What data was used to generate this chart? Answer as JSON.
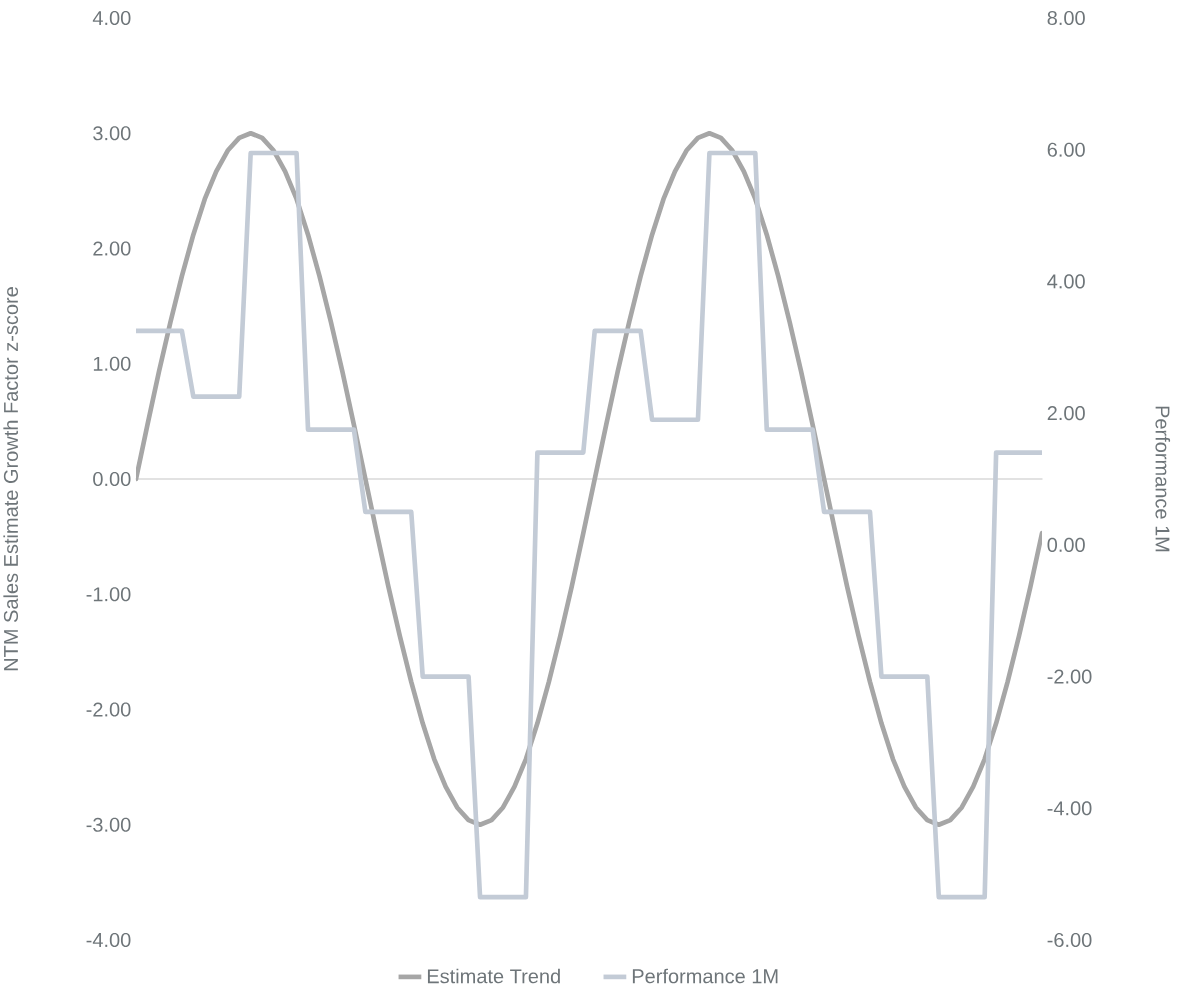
{
  "chart_data": {
    "type": "line",
    "ylabel": "NTM Sales Estimate Growth Factor z-score",
    "y2label": "Performance 1M",
    "categories": [
      null,
      null,
      null,
      null,
      null,
      null,
      null,
      null,
      null,
      null,
      null,
      null,
      null,
      null,
      null,
      null,
      null,
      null,
      null,
      null,
      null,
      null,
      null,
      null,
      null,
      null,
      null,
      null,
      null,
      null,
      null,
      null,
      null,
      null,
      null,
      null,
      null,
      null,
      null,
      null,
      null,
      null,
      null,
      null,
      null,
      null,
      null,
      null,
      null,
      null,
      null,
      null,
      null,
      null,
      null,
      null,
      null,
      null,
      null,
      null,
      null,
      null,
      null,
      null,
      null,
      null,
      null,
      null,
      null,
      null,
      null,
      null,
      null,
      null,
      null,
      null,
      null,
      null,
      null,
      null
    ],
    "series": [
      {
        "name": "Estimate Trend",
        "color": "#a6a6a6",
        "values": [
          0,
          0.47,
          0.93,
          1.36,
          1.76,
          2.12,
          2.43,
          2.67,
          2.85,
          2.96,
          3.0,
          2.96,
          2.85,
          2.67,
          2.43,
          2.12,
          1.76,
          1.36,
          0.93,
          0.47,
          0,
          -0.47,
          -0.93,
          -1.36,
          -1.76,
          -2.12,
          -2.43,
          -2.67,
          -2.85,
          -2.96,
          -3.0,
          -2.96,
          -2.85,
          -2.67,
          -2.43,
          -2.12,
          -1.76,
          -1.36,
          -0.93,
          -0.47,
          0,
          0.47,
          0.93,
          1.36,
          1.76,
          2.12,
          2.43,
          2.67,
          2.85,
          2.96,
          3.0,
          2.96,
          2.85,
          2.67,
          2.43,
          2.12,
          1.76,
          1.36,
          0.93,
          0.47,
          0,
          -0.47,
          -0.93,
          -1.36,
          -1.76,
          -2.12,
          -2.43,
          -2.67,
          -2.85,
          -2.96,
          -3.0,
          -2.96,
          -2.85,
          -2.67,
          -2.43,
          -2.12,
          -1.76,
          -1.36,
          -0.93,
          -0.47
        ]
      },
      {
        "name": "Performance 1M",
        "color": "#c3cbd6",
        "axis": "y2",
        "values": [
          3.25,
          3.25,
          3.25,
          3.25,
          3.25,
          2.25,
          2.25,
          2.25,
          2.25,
          2.25,
          5.95,
          5.95,
          5.95,
          5.95,
          5.95,
          1.75,
          1.75,
          1.75,
          1.75,
          1.75,
          0.5,
          0.5,
          0.5,
          0.5,
          0.5,
          -2.0,
          -2.0,
          -2.0,
          -2.0,
          -2.0,
          -5.35,
          -5.35,
          -5.35,
          -5.35,
          -5.35,
          1.4,
          1.4,
          1.4,
          1.4,
          1.4,
          3.25,
          3.25,
          3.25,
          3.25,
          3.25,
          1.9,
          1.9,
          1.9,
          1.9,
          1.9,
          5.95,
          5.95,
          5.95,
          5.95,
          5.95,
          1.75,
          1.75,
          1.75,
          1.75,
          1.75,
          0.5,
          0.5,
          0.5,
          0.5,
          0.5,
          -2.0,
          -2.0,
          -2.0,
          -2.0,
          -2.0,
          -5.35,
          -5.35,
          -5.35,
          -5.35,
          -5.35,
          1.4,
          1.4,
          1.4,
          1.4,
          1.4
        ]
      }
    ],
    "ylim": [
      -4,
      4
    ],
    "yticks": [
      {
        "value": -4,
        "label": "-4.00"
      },
      {
        "value": -3,
        "label": "-3.00"
      },
      {
        "value": -2,
        "label": "-2.00"
      },
      {
        "value": -1,
        "label": "-1.00"
      },
      {
        "value": 0,
        "label": "0.00"
      },
      {
        "value": 1,
        "label": "1.00"
      },
      {
        "value": 2,
        "label": "2.00"
      },
      {
        "value": 3,
        "label": "3.00"
      },
      {
        "value": 4,
        "label": "4.00"
      }
    ],
    "y2lim": [
      -6,
      8
    ],
    "y2ticks": [
      {
        "value": -6,
        "label": "-6.00"
      },
      {
        "value": -4,
        "label": "-4.00"
      },
      {
        "value": -2,
        "label": "-2.00"
      },
      {
        "value": 0,
        "label": "0.00"
      },
      {
        "value": 2,
        "label": "2.00"
      },
      {
        "value": 4,
        "label": "4.00"
      },
      {
        "value": 6,
        "label": "6.00"
      },
      {
        "value": 8,
        "label": "8.00"
      }
    ],
    "legend": "bottom",
    "marker": "none",
    "line_style": "solid"
  }
}
